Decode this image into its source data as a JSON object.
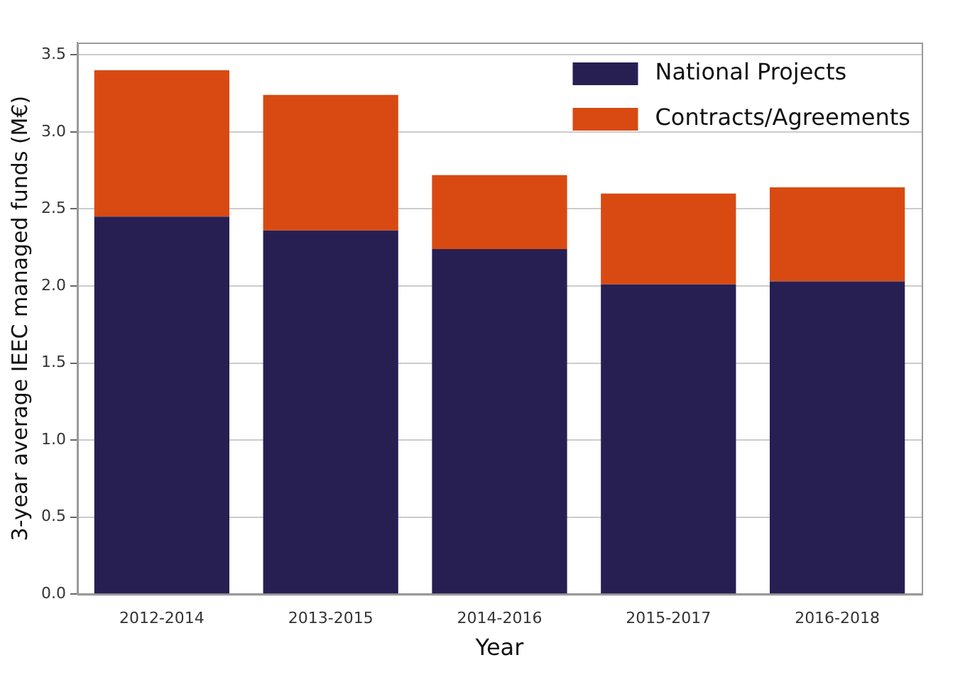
{
  "chart_data": {
    "type": "bar",
    "stacked": true,
    "xlabel": "Year",
    "ylabel": "3-year average IEEC managed funds (M€)",
    "categories": [
      "2012-2014",
      "2013-2015",
      "2014-2016",
      "2015-2017",
      "2016-2018"
    ],
    "series": [
      {
        "name": "National Projects",
        "color": "#271f52",
        "values": [
          2.45,
          2.36,
          2.24,
          2.01,
          2.03
        ]
      },
      {
        "name": "Contracts/Agreements",
        "color": "#d84a12",
        "values": [
          0.95,
          0.88,
          0.48,
          0.59,
          0.61
        ]
      }
    ],
    "ylim": [
      0,
      3.58
    ],
    "yticks": [
      {
        "value": 0,
        "label": "0.0"
      },
      {
        "value": 0.5,
        "label": "0.5"
      },
      {
        "value": 1,
        "label": "1.0"
      },
      {
        "value": 1.5,
        "label": "1.5"
      },
      {
        "value": 2,
        "label": "2.0"
      },
      {
        "value": 2.5,
        "label": "2.5"
      },
      {
        "value": 3,
        "label": "3.0"
      },
      {
        "value": 3.5,
        "label": "3.5"
      }
    ],
    "grid": "y",
    "legend": "top right"
  }
}
